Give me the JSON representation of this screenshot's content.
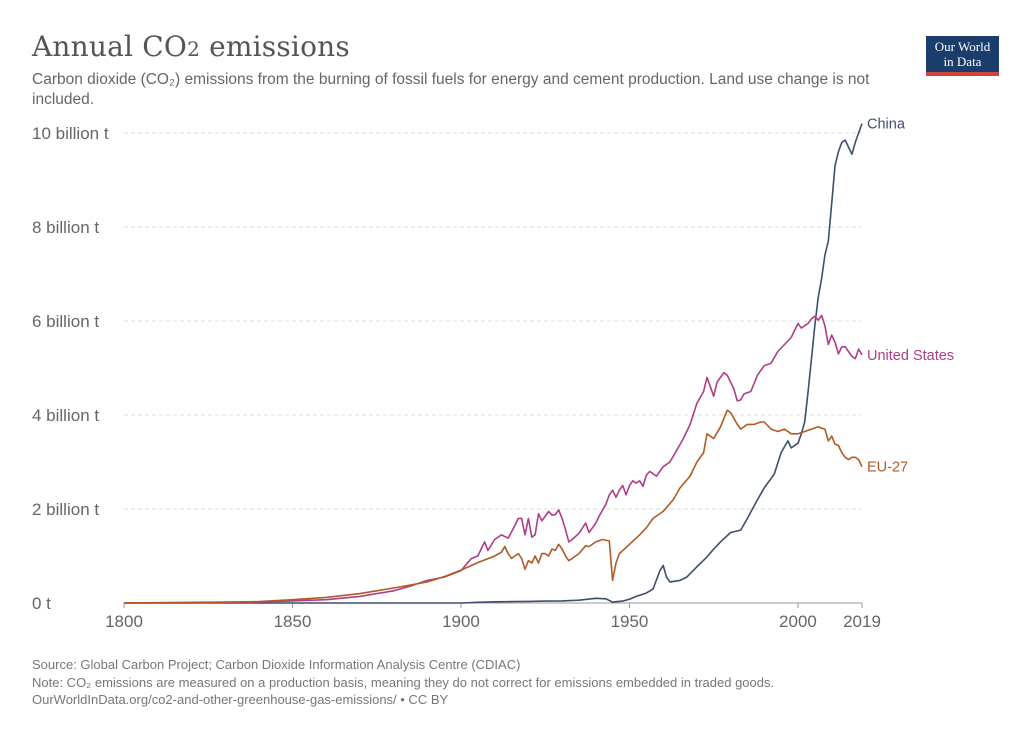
{
  "header": {
    "title_prefix": "Annual CO",
    "title_sub": "2",
    "title_suffix": " emissions",
    "subtitle": "Carbon dioxide (CO₂) emissions from the burning of fossil fuels for energy and cement production. Land use change is not included.",
    "logo_line1": "Our World",
    "logo_line2": "in Data"
  },
  "footer": {
    "source": "Source: Global Carbon Project; Carbon Dioxide Information Analysis Centre (CDIAC)",
    "note": "Note: CO₂ emissions are measured on a production basis, meaning they do not correct for emissions embedded in traded goods.",
    "url": "OurWorldInData.org/co2-and-other-greenhouse-gas-emissions/ • CC BY"
  },
  "chart_data": {
    "type": "line",
    "title": "Annual CO2 emissions",
    "xlabel": "",
    "ylabel": "",
    "xlim": [
      1800,
      2019
    ],
    "ylim": [
      0,
      10000000000
    ],
    "grid": true,
    "x_ticks": [
      1800,
      1850,
      1900,
      1950,
      2000,
      2019
    ],
    "y_ticks": [
      {
        "value": 0,
        "label": "0 t"
      },
      {
        "value": 2000000000,
        "label": "2 billion t"
      },
      {
        "value": 4000000000,
        "label": "4 billion t"
      },
      {
        "value": 6000000000,
        "label": "6 billion t"
      },
      {
        "value": 8000000000,
        "label": "8 billion t"
      },
      {
        "value": 10000000000,
        "label": "10 billion t"
      }
    ],
    "series": [
      {
        "name": "China",
        "color": "#3e4e6c",
        "x": [
          1800,
          1900,
          1905,
          1910,
          1915,
          1920,
          1925,
          1930,
          1935,
          1940,
          1943,
          1945,
          1948,
          1950,
          1952,
          1955,
          1957,
          1959,
          1960,
          1961,
          1962,
          1965,
          1967,
          1970,
          1973,
          1975,
          1977,
          1980,
          1983,
          1985,
          1988,
          1990,
          1993,
          1995,
          1997,
          1998,
          2000,
          2001,
          2002,
          2003,
          2004,
          2005,
          2006,
          2007,
          2008,
          2009,
          2010,
          2011,
          2012,
          2013,
          2014,
          2015,
          2016,
          2017,
          2018,
          2019
        ],
        "values": [
          0,
          0,
          15000000,
          25000000,
          30000000,
          35000000,
          40000000,
          45000000,
          60000000,
          100000000,
          90000000,
          20000000,
          40000000,
          80000000,
          140000000,
          210000000,
          300000000,
          680000000,
          800000000,
          550000000,
          450000000,
          480000000,
          550000000,
          770000000,
          980000000,
          1150000000,
          1300000000,
          1500000000,
          1550000000,
          1800000000,
          2200000000,
          2450000000,
          2750000000,
          3200000000,
          3450000000,
          3300000000,
          3400000000,
          3600000000,
          3850000000,
          4500000000,
          5200000000,
          5900000000,
          6500000000,
          6900000000,
          7400000000,
          7700000000,
          8500000000,
          9300000000,
          9600000000,
          9800000000,
          9850000000,
          9700000000,
          9550000000,
          9800000000,
          10000000000,
          10200000000
        ]
      },
      {
        "name": "United States",
        "color": "#b13c87",
        "x": [
          1800,
          1820,
          1840,
          1860,
          1870,
          1880,
          1885,
          1890,
          1895,
          1900,
          1903,
          1905,
          1907,
          1908,
          1910,
          1912,
          1914,
          1916,
          1917,
          1918,
          1919,
          1920,
          1921,
          1922,
          1923,
          1924,
          1926,
          1927,
          1928,
          1929,
          1930,
          1931,
          1932,
          1933,
          1935,
          1937,
          1938,
          1940,
          1941,
          1943,
          1944,
          1945,
          1946,
          1947,
          1948,
          1949,
          1950,
          1951,
          1952,
          1953,
          1954,
          1955,
          1956,
          1957,
          1958,
          1960,
          1962,
          1964,
          1966,
          1968,
          1970,
          1972,
          1973,
          1974,
          1975,
          1976,
          1977,
          1978,
          1979,
          1980,
          1981,
          1982,
          1983,
          1984,
          1986,
          1988,
          1990,
          1992,
          1994,
          1996,
          1998,
          2000,
          2001,
          2002,
          2003,
          2004,
          2005,
          2006,
          2007,
          2008,
          2009,
          2010,
          2011,
          2012,
          2013,
          2014,
          2015,
          2016,
          2017,
          2018,
          2019
        ],
        "values": [
          0,
          5000000,
          20000000,
          70000000,
          140000000,
          260000000,
          360000000,
          480000000,
          550000000,
          690000000,
          940000000,
          1000000000,
          1300000000,
          1120000000,
          1350000000,
          1450000000,
          1380000000,
          1650000000,
          1800000000,
          1800000000,
          1450000000,
          1800000000,
          1400000000,
          1450000000,
          1900000000,
          1750000000,
          1950000000,
          1870000000,
          1880000000,
          1980000000,
          1800000000,
          1560000000,
          1300000000,
          1350000000,
          1480000000,
          1700000000,
          1500000000,
          1700000000,
          1850000000,
          2100000000,
          2300000000,
          2400000000,
          2250000000,
          2400000000,
          2500000000,
          2300000000,
          2500000000,
          2600000000,
          2550000000,
          2600000000,
          2480000000,
          2720000000,
          2800000000,
          2750000000,
          2700000000,
          2900000000,
          3000000000,
          3250000000,
          3500000000,
          3800000000,
          4250000000,
          4500000000,
          4800000000,
          4600000000,
          4400000000,
          4700000000,
          4800000000,
          4900000000,
          4850000000,
          4700000000,
          4550000000,
          4300000000,
          4320000000,
          4450000000,
          4500000000,
          4850000000,
          5050000000,
          5100000000,
          5350000000,
          5500000000,
          5650000000,
          5950000000,
          5850000000,
          5900000000,
          5950000000,
          6050000000,
          6100000000,
          6020000000,
          6120000000,
          5900000000,
          5500000000,
          5700000000,
          5550000000,
          5300000000,
          5450000000,
          5450000000,
          5350000000,
          5250000000,
          5200000000,
          5400000000,
          5280000000
        ]
      },
      {
        "name": "EU-27",
        "color": "#b15a26",
        "x": [
          1800,
          1830,
          1840,
          1850,
          1860,
          1870,
          1875,
          1880,
          1885,
          1890,
          1895,
          1900,
          1905,
          1910,
          1912,
          1913,
          1914,
          1915,
          1916,
          1917,
          1918,
          1919,
          1920,
          1921,
          1922,
          1923,
          1924,
          1925,
          1926,
          1927,
          1928,
          1929,
          1930,
          1931,
          1932,
          1933,
          1935,
          1937,
          1938,
          1940,
          1942,
          1944,
          1945,
          1946,
          1947,
          1950,
          1953,
          1955,
          1957,
          1960,
          1963,
          1965,
          1968,
          1970,
          1972,
          1973,
          1975,
          1977,
          1979,
          1980,
          1982,
          1983,
          1985,
          1987,
          1989,
          1990,
          1992,
          1994,
          1996,
          1998,
          2000,
          2002,
          2004,
          2006,
          2007,
          2008,
          2009,
          2010,
          2011,
          2012,
          2013,
          2014,
          2015,
          2016,
          2017,
          2018,
          2019
        ],
        "values": [
          0,
          20000000,
          30000000,
          70000000,
          120000000,
          200000000,
          260000000,
          320000000,
          380000000,
          450000000,
          560000000,
          700000000,
          860000000,
          1000000000,
          1080000000,
          1200000000,
          1050000000,
          950000000,
          1000000000,
          1050000000,
          950000000,
          720000000,
          900000000,
          850000000,
          1000000000,
          850000000,
          1050000000,
          1050000000,
          1000000000,
          1150000000,
          1120000000,
          1250000000,
          1150000000,
          1000000000,
          900000000,
          950000000,
          1050000000,
          1220000000,
          1200000000,
          1300000000,
          1350000000,
          1320000000,
          480000000,
          850000000,
          1050000000,
          1250000000,
          1450000000,
          1600000000,
          1800000000,
          1950000000,
          2200000000,
          2450000000,
          2700000000,
          3000000000,
          3200000000,
          3600000000,
          3500000000,
          3750000000,
          4100000000,
          4050000000,
          3800000000,
          3700000000,
          3800000000,
          3800000000,
          3850000000,
          3850000000,
          3700000000,
          3650000000,
          3700000000,
          3600000000,
          3600000000,
          3650000000,
          3700000000,
          3750000000,
          3720000000,
          3700000000,
          3450000000,
          3550000000,
          3380000000,
          3350000000,
          3200000000,
          3100000000,
          3050000000,
          3100000000,
          3100000000,
          3050000000,
          2900000000
        ]
      }
    ]
  }
}
